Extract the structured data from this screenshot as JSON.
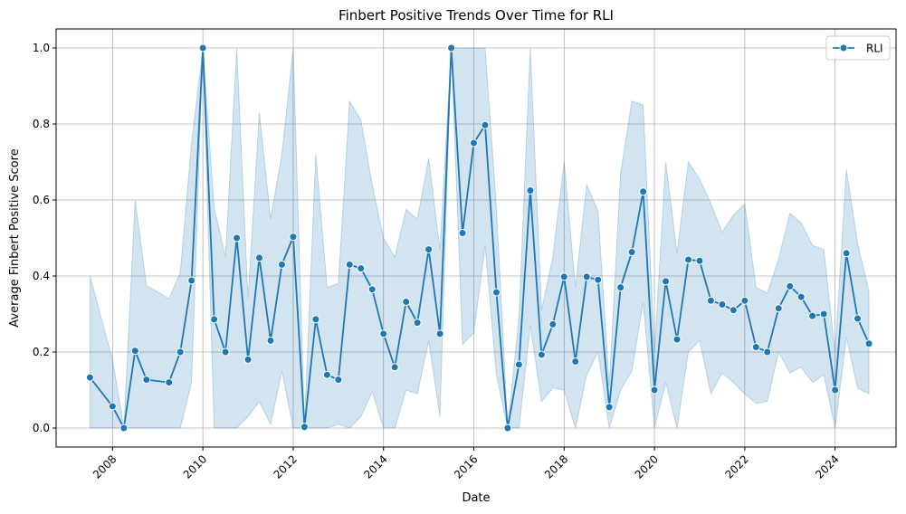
{
  "chart_data": {
    "type": "line",
    "title": "Finbert Positive Trends Over Time for RLI",
    "xlabel": "Date",
    "ylabel": "Average Finbert Positive Score",
    "xlim": [
      2006.75,
      2025.35
    ],
    "ylim": [
      -0.05,
      1.05
    ],
    "x_ticks": [
      2008,
      2010,
      2012,
      2014,
      2016,
      2018,
      2020,
      2022,
      2024
    ],
    "x_tick_labels": [
      "2008",
      "2010",
      "2012",
      "2014",
      "2016",
      "2018",
      "2020",
      "2022",
      "2024"
    ],
    "y_ticks": [
      0.0,
      0.2,
      0.4,
      0.6,
      0.8,
      1.0
    ],
    "y_tick_labels": [
      "0.0",
      "0.2",
      "0.4",
      "0.6",
      "0.8",
      "1.0"
    ],
    "grid": true,
    "legend_position": "top-right",
    "colors": {
      "line": "#1f77b4",
      "band": "#1f77b4"
    },
    "series": [
      {
        "name": "RLI",
        "x": [
          2007.5,
          2008.0,
          2008.25,
          2008.5,
          2008.75,
          2009.25,
          2009.5,
          2009.75,
          2010.0,
          2010.25,
          2010.5,
          2010.75,
          2011.0,
          2011.25,
          2011.5,
          2011.75,
          2012.0,
          2012.25,
          2012.5,
          2012.75,
          2013.0,
          2013.25,
          2013.5,
          2013.75,
          2014.0,
          2014.25,
          2014.5,
          2014.75,
          2015.0,
          2015.25,
          2015.5,
          2015.75,
          2016.0,
          2016.25,
          2016.5,
          2016.75,
          2017.0,
          2017.25,
          2017.5,
          2017.75,
          2018.0,
          2018.25,
          2018.5,
          2018.75,
          2019.0,
          2019.25,
          2019.5,
          2019.75,
          2020.0,
          2020.25,
          2020.5,
          2020.75,
          2021.0,
          2021.25,
          2021.5,
          2021.75,
          2022.0,
          2022.25,
          2022.5,
          2022.75,
          2023.0,
          2023.25,
          2023.5,
          2023.75,
          2024.0,
          2024.25,
          2024.5,
          2024.75
        ],
        "values": [
          0.133,
          0.057,
          0.0,
          0.203,
          0.127,
          0.12,
          0.2,
          0.388,
          1.0,
          0.286,
          0.2,
          0.5,
          0.18,
          0.448,
          0.23,
          0.43,
          0.503,
          0.003,
          0.286,
          0.14,
          0.127,
          0.43,
          0.42,
          0.365,
          0.248,
          0.16,
          0.332,
          0.277,
          0.47,
          0.248,
          1.0,
          0.513,
          0.75,
          0.797,
          0.357,
          0.0,
          0.167,
          0.625,
          0.193,
          0.273,
          0.398,
          0.175,
          0.398,
          0.39,
          0.055,
          0.37,
          0.463,
          0.622,
          0.1,
          0.386,
          0.233,
          0.443,
          0.44,
          0.335,
          0.325,
          0.31,
          0.335,
          0.213,
          0.2,
          0.315,
          0.373,
          0.345,
          0.295,
          0.3,
          0.1,
          0.46,
          0.288,
          0.222
        ],
        "ci_lower": [
          0.0,
          0.0,
          0.0,
          0.0,
          0.0,
          0.0,
          0.0,
          0.12,
          1.0,
          0.0,
          0.0,
          0.0,
          0.03,
          0.07,
          0.01,
          0.15,
          0.0,
          0.0,
          0.0,
          0.0,
          0.01,
          0.0,
          0.03,
          0.095,
          0.0,
          0.0,
          0.1,
          0.09,
          0.23,
          0.03,
          1.0,
          0.22,
          0.25,
          0.48,
          0.14,
          0.0,
          0.0,
          0.27,
          0.07,
          0.105,
          0.1,
          0.0,
          0.14,
          0.2,
          0.0,
          0.1,
          0.15,
          0.33,
          0.0,
          0.12,
          0.0,
          0.2,
          0.23,
          0.09,
          0.145,
          0.12,
          0.09,
          0.065,
          0.07,
          0.2,
          0.145,
          0.16,
          0.12,
          0.14,
          0.0,
          0.24,
          0.105,
          0.09
        ],
        "ci_upper": [
          0.4,
          0.18,
          0.0,
          0.6,
          0.375,
          0.34,
          0.41,
          0.75,
          1.0,
          0.58,
          0.45,
          1.0,
          0.34,
          0.83,
          0.55,
          0.72,
          1.0,
          0.003,
          0.72,
          0.37,
          0.38,
          0.86,
          0.81,
          0.64,
          0.5,
          0.45,
          0.575,
          0.55,
          0.71,
          0.47,
          1.0,
          1.0,
          1.0,
          1.0,
          0.58,
          0.0,
          0.29,
          1.0,
          0.31,
          0.45,
          0.7,
          0.37,
          0.64,
          0.57,
          0.11,
          0.67,
          0.86,
          0.85,
          0.2,
          0.7,
          0.46,
          0.7,
          0.655,
          0.59,
          0.515,
          0.56,
          0.59,
          0.37,
          0.355,
          0.445,
          0.565,
          0.54,
          0.48,
          0.47,
          0.2,
          0.68,
          0.485,
          0.36
        ]
      }
    ]
  }
}
